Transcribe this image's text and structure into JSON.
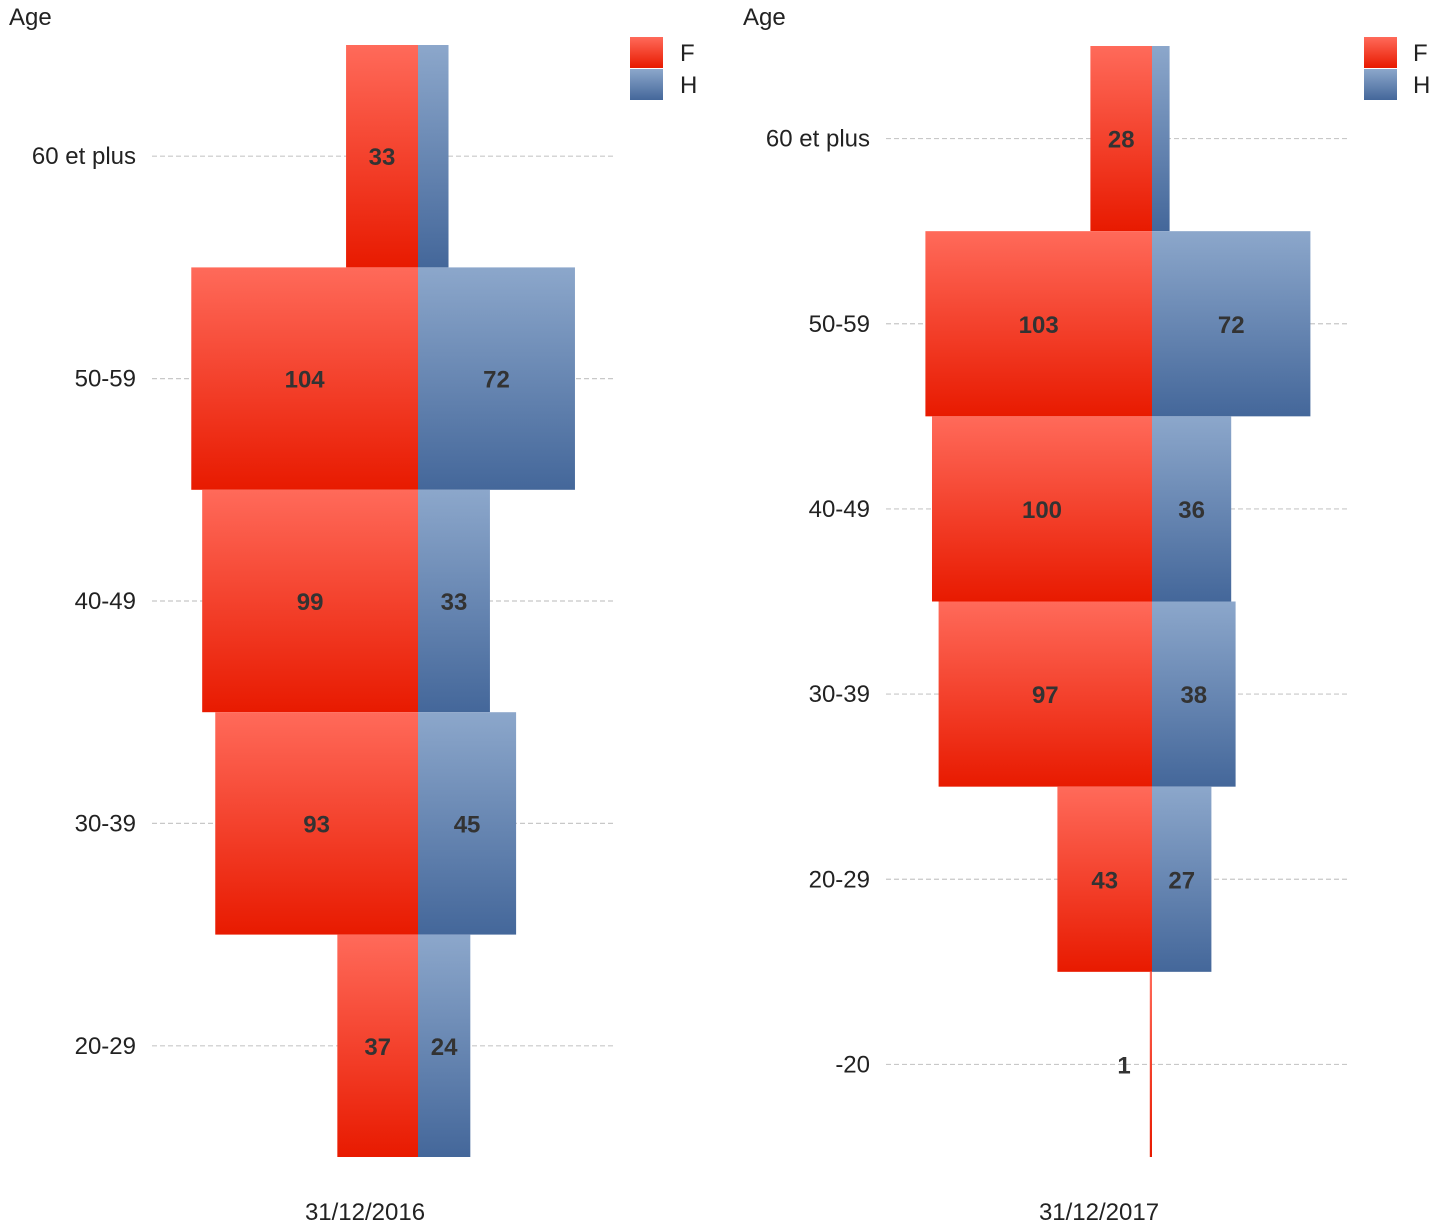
{
  "colors": {
    "F_top": "#ff6a5a",
    "F_bottom": "#e81a00",
    "H_top": "#8ca7cb",
    "H_bottom": "#44679a",
    "grid": "#c8c8c8",
    "text": "#222222",
    "value_text": "#333333"
  },
  "chart_data": [
    {
      "type": "bar",
      "subtype": "population-pyramid",
      "title": "",
      "xlabel": "31/12/2016",
      "ylabel": "Age",
      "categories": [
        "60 et plus",
        "50-59",
        "40-49",
        "30-39",
        "20-29"
      ],
      "series": [
        {
          "name": "F",
          "values": [
            33,
            104,
            99,
            93,
            37
          ]
        },
        {
          "name": "H",
          "values": [
            14,
            72,
            33,
            45,
            24
          ]
        }
      ],
      "value_labels": {
        "F": [
          "33",
          "104",
          "99",
          "93",
          "37"
        ],
        "H": [
          "",
          "72",
          "33",
          "45",
          "24"
        ]
      },
      "legend": {
        "position": "top-right",
        "entries": [
          "F",
          "H"
        ]
      },
      "grid": true
    },
    {
      "type": "bar",
      "subtype": "population-pyramid",
      "title": "",
      "xlabel": "31/12/2017",
      "ylabel": "Age",
      "categories": [
        "60 et plus",
        "50-59",
        "40-49",
        "30-39",
        "20-29",
        "-20"
      ],
      "series": [
        {
          "name": "F",
          "values": [
            28,
            103,
            100,
            97,
            43,
            1
          ]
        },
        {
          "name": "H",
          "values": [
            8,
            72,
            36,
            38,
            27,
            0
          ]
        }
      ],
      "value_labels": {
        "F": [
          "28",
          "103",
          "100",
          "97",
          "43",
          "1"
        ],
        "H": [
          "",
          "72",
          "36",
          "38",
          "27",
          ""
        ]
      },
      "legend": {
        "position": "top-right",
        "entries": [
          "F",
          "H"
        ]
      },
      "grid": true
    }
  ]
}
